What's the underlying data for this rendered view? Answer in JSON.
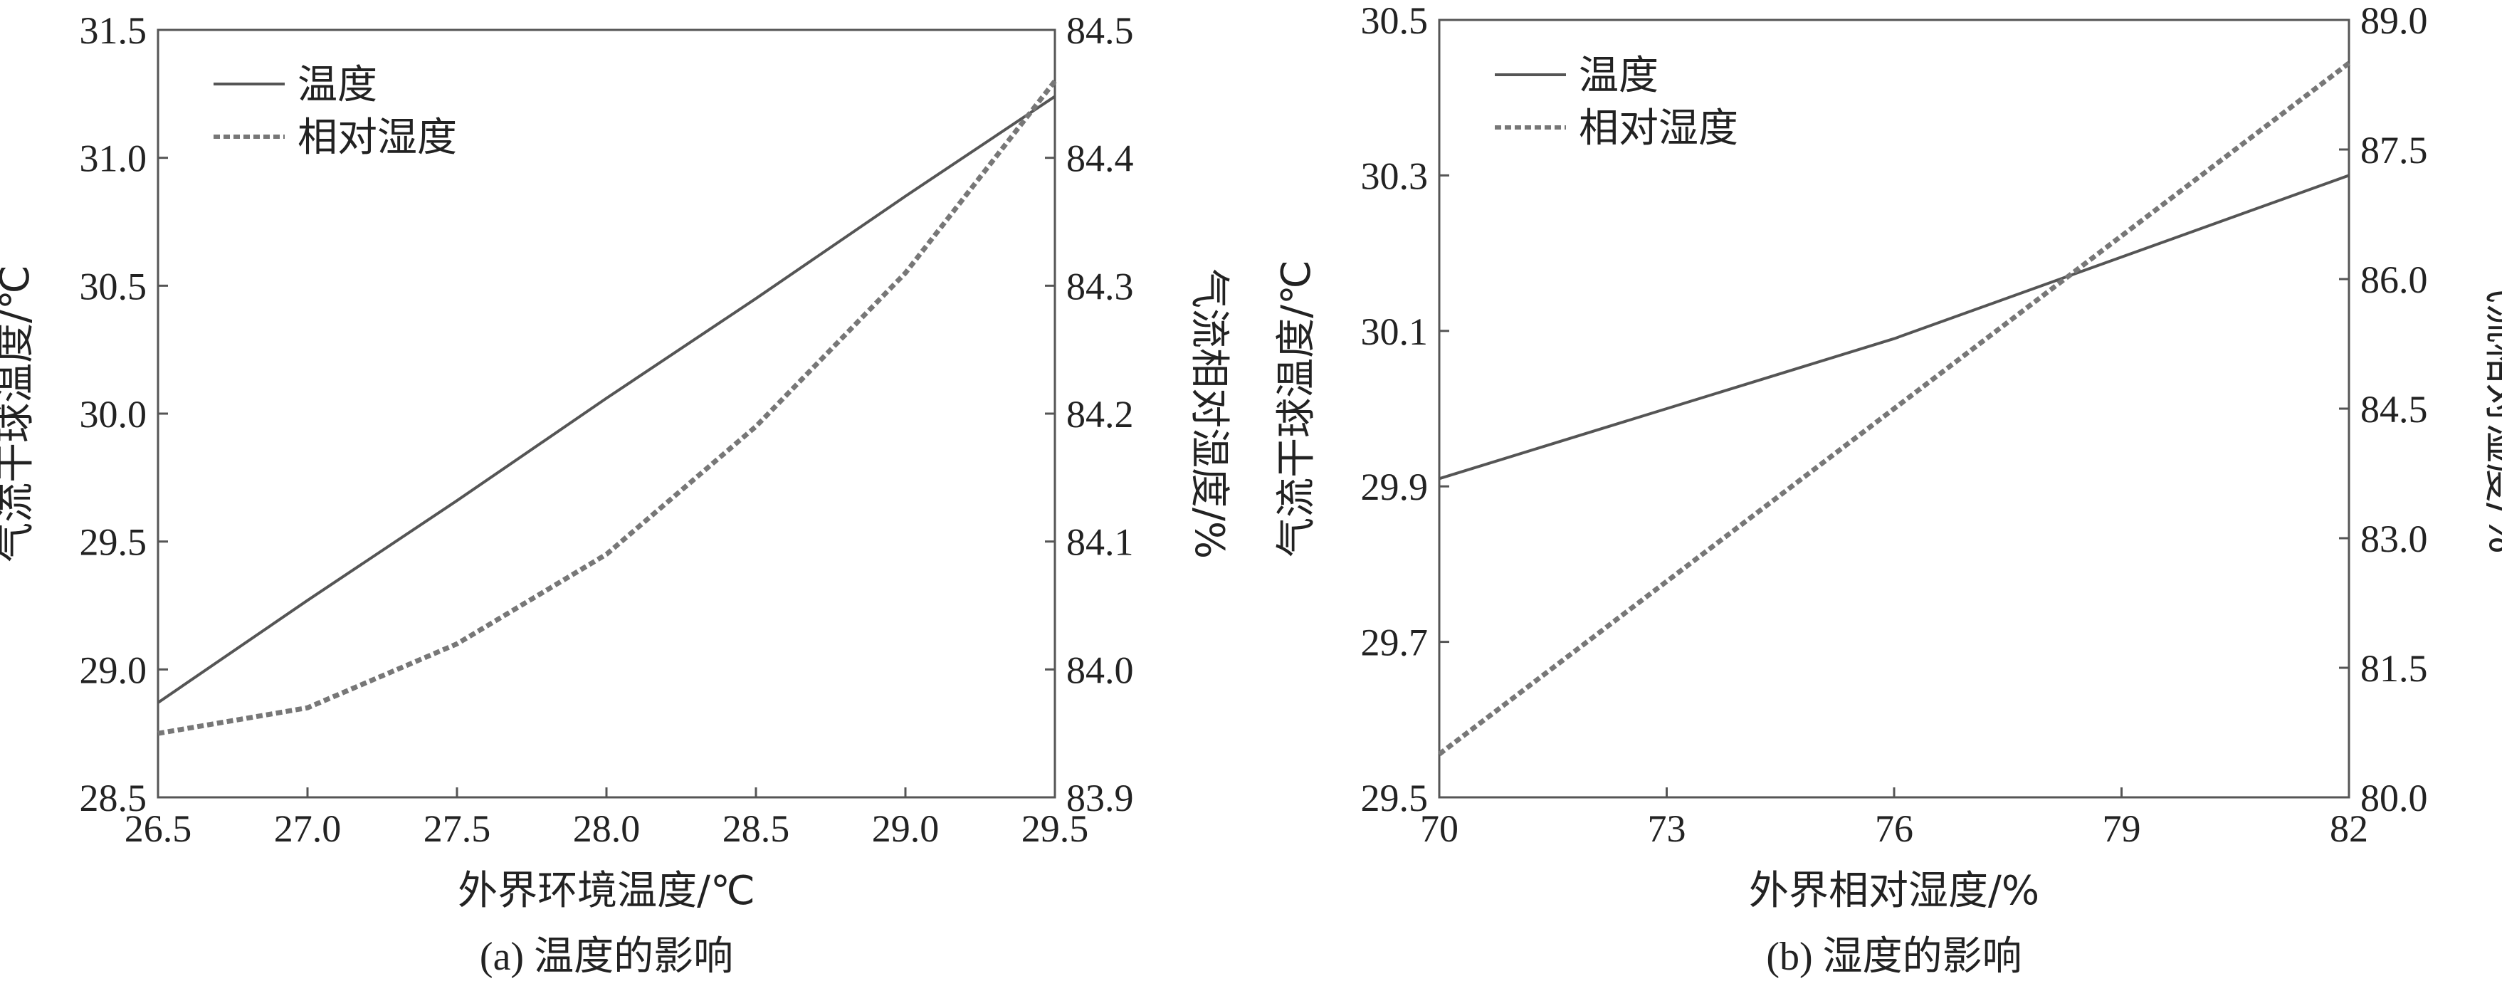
{
  "chart_data": [
    {
      "id": "a",
      "type": "line",
      "caption": "(a) 温度的影响",
      "xlabel": "外界环境温度/℃",
      "ylabel_left": "气流干球温度/℃",
      "ylabel_right": "气流相对湿度/%",
      "xlim": [
        26.5,
        29.5
      ],
      "ylim_left": [
        28.5,
        31.5
      ],
      "ylim_right": [
        83.9,
        84.5
      ],
      "xticks": [
        "26.5",
        "27.0",
        "27.5",
        "28.0",
        "28.5",
        "29.0",
        "29.5"
      ],
      "yticks_left": [
        "28.5",
        "29.0",
        "29.5",
        "30.0",
        "30.5",
        "31.0",
        "31.5"
      ],
      "yticks_right": [
        "83.9",
        "84.0",
        "84.1",
        "84.2",
        "84.3",
        "84.4",
        "84.5"
      ],
      "legend_position": "top-left",
      "series": [
        {
          "name": "温度",
          "axis": "left",
          "style": "solid",
          "color": "#555555",
          "x": [
            26.5,
            27.0,
            27.5,
            28.0,
            28.5,
            29.0,
            29.5
          ],
          "y": [
            28.87,
            29.27,
            29.66,
            30.06,
            30.45,
            30.85,
            31.24
          ]
        },
        {
          "name": "相对湿度",
          "axis": "right",
          "style": "dashed",
          "color": "#777777",
          "x": [
            26.5,
            27.0,
            27.5,
            28.0,
            28.5,
            29.0,
            29.5
          ],
          "y": [
            83.95,
            83.97,
            84.02,
            84.09,
            84.19,
            84.31,
            84.46
          ]
        }
      ]
    },
    {
      "id": "b",
      "type": "line",
      "caption": "(b) 湿度的影响",
      "xlabel": "外界相对湿度/%",
      "ylabel_left": "气流干球温度/℃",
      "ylabel_right": "气流相对湿度/%",
      "xlim": [
        70,
        82
      ],
      "ylim_left": [
        29.5,
        30.5
      ],
      "ylim_right": [
        80.0,
        89.0
      ],
      "xticks": [
        "70",
        "73",
        "76",
        "79",
        "82"
      ],
      "yticks_left": [
        "29.5",
        "29.7",
        "29.9",
        "30.1",
        "30.3",
        "30.5"
      ],
      "yticks_right": [
        "80.0",
        "81.5",
        "83.0",
        "84.5",
        "86.0",
        "87.5",
        "89.0"
      ],
      "legend_position": "top-left",
      "series": [
        {
          "name": "温度",
          "axis": "left",
          "style": "solid",
          "color": "#555555",
          "x": [
            70,
            76,
            82
          ],
          "y": [
            29.91,
            30.09,
            30.3
          ]
        },
        {
          "name": "相对湿度",
          "axis": "right",
          "style": "dashed",
          "color": "#777777",
          "x": [
            70,
            82
          ],
          "y": [
            80.5,
            88.5
          ]
        }
      ]
    }
  ]
}
